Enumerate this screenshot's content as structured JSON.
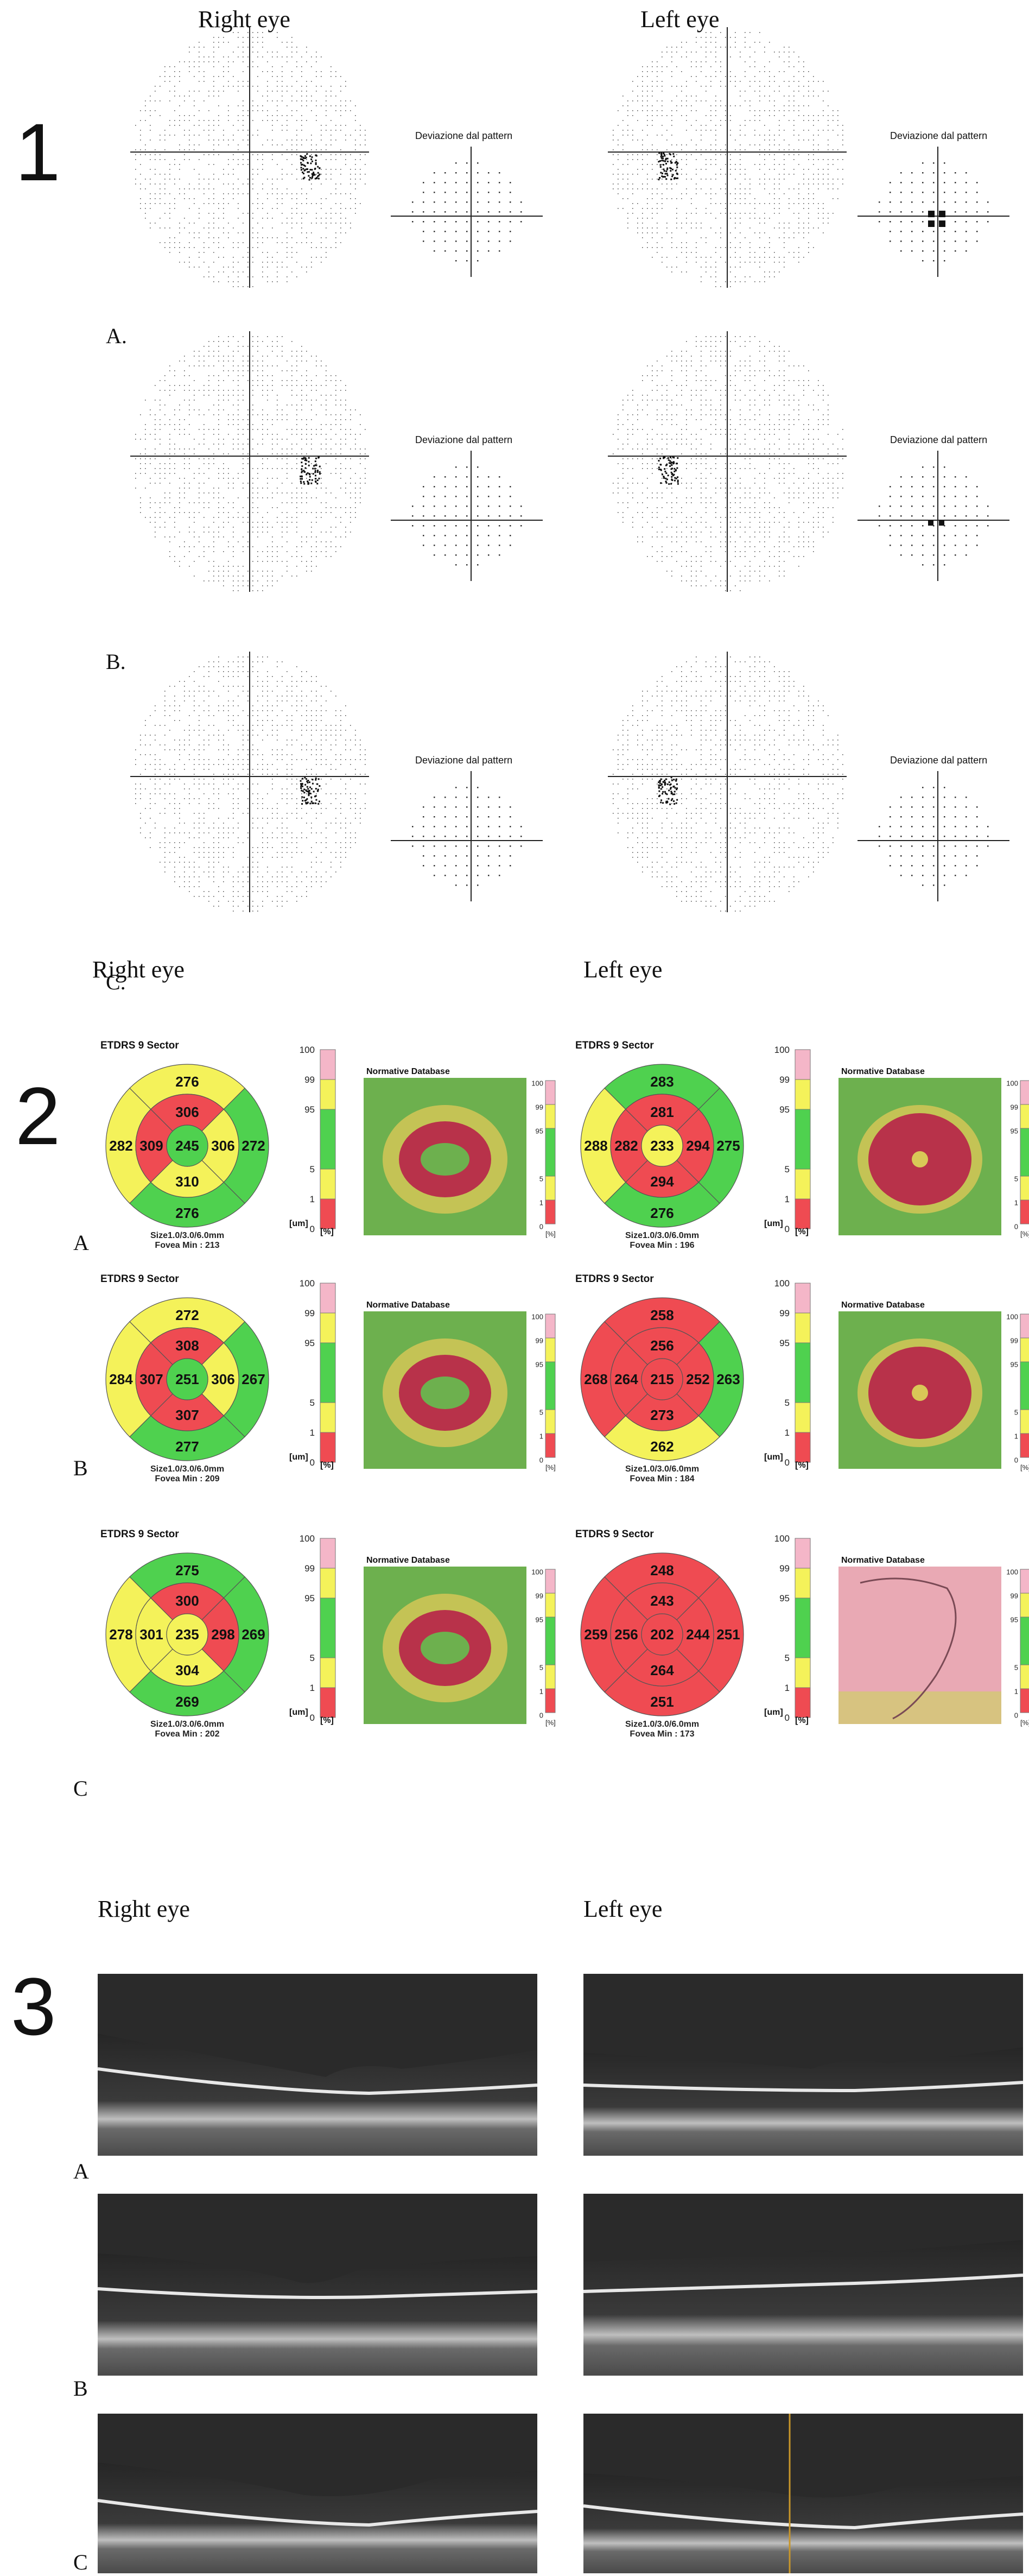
{
  "section1": {
    "number": "1",
    "right_eye_label": "Right eye",
    "left_eye_label": "Left eye",
    "rows": [
      {
        "letter": "A.",
        "right_pattern_title": "Deviazione dal pattern",
        "left_pattern_title": "Deviazione dal pattern"
      },
      {
        "letter": "B.",
        "right_pattern_title": "Deviazione dal pattern",
        "left_pattern_title": "Deviazione dal pattern"
      },
      {
        "letter": "C.",
        "right_pattern_title": "Deviazione dal pattern",
        "left_pattern_title": "Deviazione dal pattern"
      }
    ],
    "bottom_right_eye_label": "Right eye",
    "bottom_left_eye_label": "Left eye"
  },
  "section2": {
    "number": "2",
    "etdrs_title": "ETDRS 9 Sector",
    "normative_title": "Normative Database",
    "unit_um": "[um]",
    "unit_pct": "[%]",
    "scale_ticks": [
      "100",
      "99",
      "95",
      "5",
      "1",
      "0"
    ],
    "map_scale_ticks": [
      "100",
      "99",
      "95",
      "5",
      "1",
      "0"
    ],
    "colors": {
      "pink": "#f4b6c8",
      "yellow": "#f4f25a",
      "green": "#4fd14f",
      "red": "#ef4b52"
    },
    "rows": [
      {
        "letter": "A",
        "right": {
          "values": {
            "center": "245",
            "inner_sup": "306",
            "inner_inf": "310",
            "inner_temp": "306",
            "inner_nas": "309",
            "outer_sup": "276",
            "outer_inf": "276",
            "outer_temp": "272",
            "outer_nas": "282"
          },
          "colors": {
            "center": "green",
            "inner_sup": "red",
            "inner_inf": "yellow",
            "inner_temp": "yellow",
            "inner_nas": "red",
            "outer_sup": "yellow",
            "outer_inf": "green",
            "outer_temp": "green",
            "outer_nas": "yellow"
          },
          "size": "Size1.0/3.0/6.0mm",
          "fovea": "Fovea Min : 213"
        },
        "left": {
          "values": {
            "center": "233",
            "inner_sup": "281",
            "inner_inf": "294",
            "inner_temp": "282",
            "inner_nas": "294",
            "outer_sup": "283",
            "outer_inf": "276",
            "outer_temp": "288",
            "outer_nas": "275"
          },
          "colors": {
            "center": "yellow",
            "inner_sup": "red",
            "inner_inf": "red",
            "inner_temp": "red",
            "inner_nas": "red",
            "outer_sup": "green",
            "outer_inf": "green",
            "outer_temp": "yellow",
            "outer_nas": "green"
          },
          "size": "Size1.0/3.0/6.0mm",
          "fovea": "Fovea Min : 196"
        }
      },
      {
        "letter": "B",
        "right": {
          "values": {
            "center": "251",
            "inner_sup": "308",
            "inner_inf": "307",
            "inner_temp": "306",
            "inner_nas": "307",
            "outer_sup": "272",
            "outer_inf": "277",
            "outer_temp": "267",
            "outer_nas": "284"
          },
          "colors": {
            "center": "green",
            "inner_sup": "red",
            "inner_inf": "red",
            "inner_temp": "yellow",
            "inner_nas": "red",
            "outer_sup": "yellow",
            "outer_inf": "green",
            "outer_temp": "green",
            "outer_nas": "yellow"
          },
          "size": "Size1.0/3.0/6.0mm",
          "fovea": "Fovea Min : 209"
        },
        "left": {
          "values": {
            "center": "215",
            "inner_sup": "256",
            "inner_inf": "273",
            "inner_temp": "264",
            "inner_nas": "252",
            "outer_sup": "258",
            "outer_inf": "262",
            "outer_temp": "268",
            "outer_nas": "263"
          },
          "colors": {
            "center": "red",
            "inner_sup": "red",
            "inner_inf": "red",
            "inner_temp": "red",
            "inner_nas": "red",
            "outer_sup": "red",
            "outer_inf": "yellow",
            "outer_temp": "red",
            "outer_nas": "green"
          },
          "size": "Size1.0/3.0/6.0mm",
          "fovea": "Fovea Min : 184"
        }
      },
      {
        "letter": "C",
        "right": {
          "values": {
            "center": "235",
            "inner_sup": "300",
            "inner_inf": "304",
            "inner_temp": "298",
            "inner_nas": "301",
            "outer_sup": "275",
            "outer_inf": "269",
            "outer_temp": "269",
            "outer_nas": "278"
          },
          "colors": {
            "center": "yellow",
            "inner_sup": "red",
            "inner_inf": "yellow",
            "inner_temp": "red",
            "inner_nas": "yellow",
            "outer_sup": "green",
            "outer_inf": "green",
            "outer_temp": "green",
            "outer_nas": "yellow"
          },
          "size": "Size1.0/3.0/6.0mm",
          "fovea": "Fovea Min : 202"
        },
        "left": {
          "values": {
            "center": "202",
            "inner_sup": "243",
            "inner_inf": "264",
            "inner_temp": "256",
            "inner_nas": "244",
            "outer_sup": "248",
            "outer_inf": "251",
            "outer_temp": "259",
            "outer_nas": "251"
          },
          "colors": {
            "center": "red",
            "inner_sup": "red",
            "inner_inf": "red",
            "inner_temp": "red",
            "inner_nas": "red",
            "outer_sup": "red",
            "outer_inf": "red",
            "outer_temp": "red",
            "outer_nas": "red"
          },
          "size": "Size1.0/3.0/6.0mm",
          "fovea": "Fovea Min : 173"
        }
      }
    ]
  },
  "section3": {
    "number": "3",
    "right_eye_label": "Right eye",
    "left_eye_label": "Left eye",
    "rows": [
      {
        "letter": "A"
      },
      {
        "letter": "B"
      },
      {
        "letter": "C"
      }
    ]
  }
}
